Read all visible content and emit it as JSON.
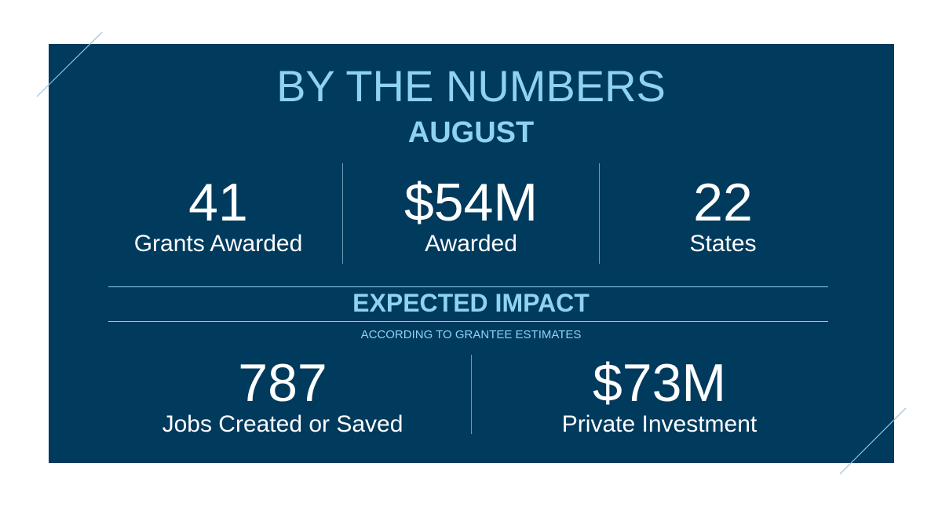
{
  "header": {
    "title": "BY THE NUMBERS",
    "period": "AUGUST"
  },
  "stats_top": [
    {
      "value": "41",
      "label": "Grants Awarded"
    },
    {
      "value": "$54M",
      "label": "Awarded"
    },
    {
      "value": "22",
      "label": "States"
    }
  ],
  "impact": {
    "heading": "EXPECTED IMPACT",
    "note": "ACCORDING TO GRANTEE ESTIMATES"
  },
  "stats_bottom": [
    {
      "value": "787",
      "label": "Jobs Created or Saved"
    },
    {
      "value": "$73M",
      "label": "Private Investment"
    }
  ],
  "colors": {
    "panel": "#003a5d",
    "accent": "#8fd3f4",
    "text": "#ffffff"
  }
}
